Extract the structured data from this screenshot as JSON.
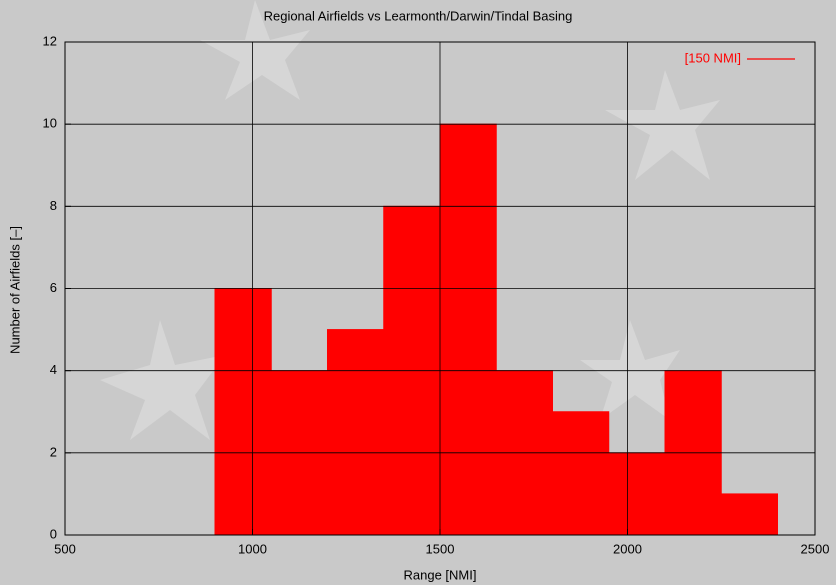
{
  "chart_data": {
    "type": "histogram",
    "title": "Regional Airfields vs Learmonth/Darwin/Tindal Basing",
    "x_label": "Range [NMI]",
    "y_label": "Number of Airfields  [–]",
    "bins": [
      750,
      900,
      1050,
      1200,
      1350,
      1500,
      1650,
      1800,
      1950,
      2100,
      2250,
      2400
    ],
    "series": [
      {
        "name": "[150 NMI]",
        "color": "#ff0000",
        "values": [
          0,
          6,
          4,
          5,
          8,
          10,
          4,
          3,
          2,
          4,
          1
        ]
      }
    ],
    "xlim": [
      500,
      2500
    ],
    "xticks": [
      500,
      1000,
      1500,
      2000,
      2500
    ],
    "ylim": [
      0,
      12
    ],
    "yticks": [
      0,
      2,
      4,
      6,
      8,
      10,
      12
    ],
    "grid": true,
    "legend": "top-right"
  }
}
